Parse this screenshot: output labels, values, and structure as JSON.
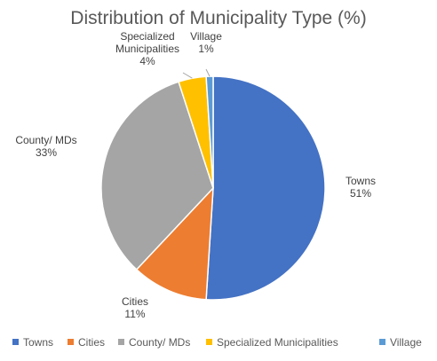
{
  "chart_data": {
    "type": "pie",
    "title": "Distribution of Municipality Type (%)",
    "categories": [
      "Towns",
      "Cities",
      "County/ MDs",
      "Specialized Municipalities",
      "Village"
    ],
    "values": [
      51,
      11,
      33,
      4,
      1
    ],
    "percent_labels": [
      "51%",
      "11%",
      "33%",
      "4%",
      "1%"
    ],
    "colors": [
      "#4472C4",
      "#ED7D31",
      "#A5A5A5",
      "#FFC000",
      "#5B9BD5"
    ],
    "legend": "bottom",
    "data_labels": [
      {
        "lines": [
          "Towns",
          "51%"
        ]
      },
      {
        "lines": [
          "Cities",
          "11%"
        ]
      },
      {
        "lines": [
          "County/ MDs",
          "33%"
        ]
      },
      {
        "lines": [
          "Specialized",
          "Municipalities",
          "4%"
        ]
      },
      {
        "lines": [
          "Village",
          "1%"
        ]
      }
    ]
  }
}
